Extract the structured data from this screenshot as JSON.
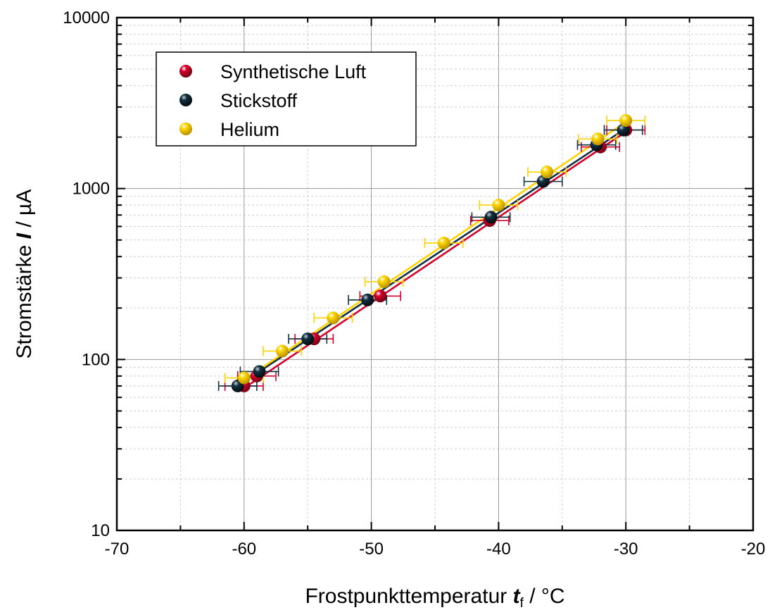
{
  "chart_data": {
    "type": "scatter",
    "x_scale": "linear",
    "y_scale": "log",
    "xlim": [
      -70,
      -20
    ],
    "ylim": [
      10,
      10000
    ],
    "x_ticks": [
      -70,
      -60,
      -50,
      -40,
      -30,
      -20
    ],
    "x_tick_labels": [
      "-70",
      "-60",
      "-50",
      "-40",
      "-30",
      "-20"
    ],
    "y_ticks": [
      10,
      100,
      1000,
      10000
    ],
    "y_tick_labels": [
      "10",
      "100",
      "1000",
      "10000"
    ],
    "xlabel": {
      "main": "Frostpunkttemperatur ",
      "var": "t",
      "sub": "f",
      "unit": " / °C"
    },
    "ylabel": {
      "main": "Stromstärke ",
      "var": "I",
      "unit": " / µA"
    },
    "grid": true,
    "legend_placement": "top-left",
    "series": [
      {
        "name": "Synthetische Luft",
        "color": "#d6002a",
        "x": [
          -60.0,
          -59.0,
          -54.5,
          -49.3,
          -40.7,
          -32.0,
          -30.0
        ],
        "y": [
          70,
          80,
          132,
          235,
          650,
          1750,
          2200
        ],
        "x_err": [
          1.5,
          1.5,
          1.5,
          1.6,
          1.5,
          1.5,
          1.5
        ],
        "fit": {
          "x": [
            -60.0,
            -30.0
          ],
          "y": [
            68,
            2150
          ]
        }
      },
      {
        "name": "Stickstoff",
        "color": "#12303f",
        "x": [
          -60.5,
          -58.8,
          -55.0,
          -50.3,
          -40.6,
          -36.5,
          -32.3,
          -30.2
        ],
        "y": [
          70,
          85,
          132,
          223,
          680,
          1100,
          1800,
          2200
        ],
        "x_err": [
          1.5,
          1.5,
          1.5,
          1.5,
          1.5,
          1.5,
          1.5,
          1.5
        ],
        "fit": {
          "x": [
            -60.5,
            -30.0
          ],
          "y": [
            70,
            2250
          ]
        }
      },
      {
        "name": "Helium",
        "color": "#ffd200",
        "x": [
          -60.0,
          -57.0,
          -53.0,
          -49.0,
          -44.3,
          -40.0,
          -36.2,
          -32.2,
          -30.0
        ],
        "y": [
          78,
          112,
          175,
          285,
          480,
          800,
          1250,
          1950,
          2500
        ],
        "x_err": [
          1.5,
          1.5,
          1.5,
          1.5,
          1.5,
          1.5,
          1.5,
          1.5,
          1.5
        ],
        "fit": {
          "x": [
            -60.0,
            -30.0
          ],
          "y": [
            76,
            2450
          ]
        }
      }
    ]
  }
}
